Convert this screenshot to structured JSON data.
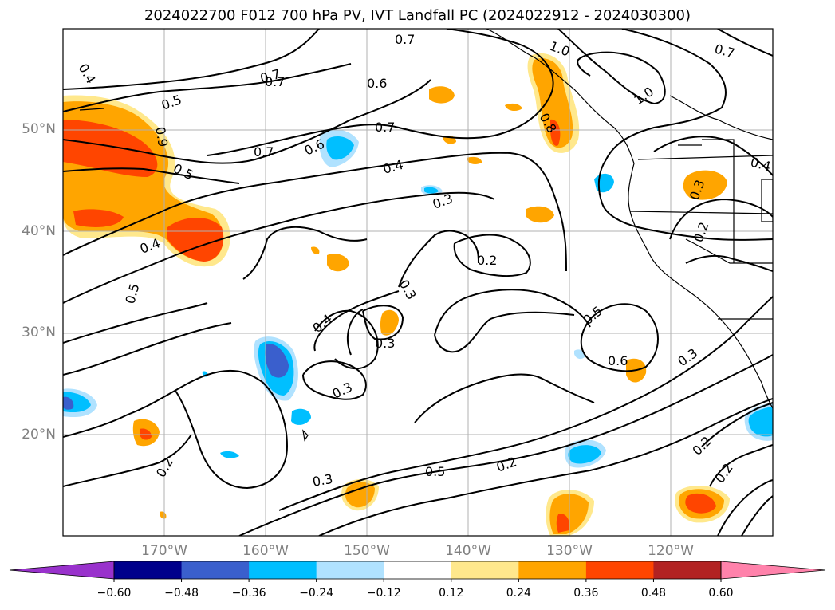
{
  "title": "2024022700 F012 700 hPa PV, IVT Landfall PC (2024022912 - 2024030300)",
  "lat_labels": [
    {
      "text": "50°N",
      "lat": 50
    },
    {
      "text": "40°N",
      "lat": 40
    },
    {
      "text": "30°N",
      "lat": 30
    },
    {
      "text": "20°N",
      "lat": 20
    }
  ],
  "lon_labels": [
    {
      "text": "170°W",
      "lon": -170
    },
    {
      "text": "160°W",
      "lon": -160
    },
    {
      "text": "150°W",
      "lon": -150
    },
    {
      "text": "140°W",
      "lon": -140
    },
    {
      "text": "130°W",
      "lon": -130
    },
    {
      "text": "120°W",
      "lon": -120
    }
  ],
  "colorbar": {
    "ticks": [
      "−0.60",
      "−0.48",
      "−0.36",
      "−0.24",
      "−0.12",
      "0.12",
      "0.24",
      "0.36",
      "0.48",
      "0.60"
    ],
    "colors": [
      "#9932cc",
      "#00008b",
      "#3a5fcd",
      "#00bfff",
      "#b0e2ff",
      "#ffffff",
      "#ffe88c",
      "#ffa500",
      "#ff4500",
      "#b22222",
      "#ff82ab"
    ]
  },
  "contour_labels": [
    "0.4",
    "0.7",
    "0.7",
    "0.6",
    "0.7",
    "1.0",
    "0.7",
    "0.5",
    "0.9",
    "0.8",
    "1.0",
    "0.6",
    "0.7",
    "0.7",
    "0.5",
    "0.4",
    "0.3",
    "0.4",
    "0.4",
    "0.3",
    "0.2",
    "0.3",
    "0.2",
    "0.5",
    "0.4",
    "0.3",
    "0.5",
    "0.6",
    "0.3",
    "0.3",
    "0.2",
    "0.5",
    "0.3",
    "0.2",
    "0.2",
    "0.2"
  ]
}
